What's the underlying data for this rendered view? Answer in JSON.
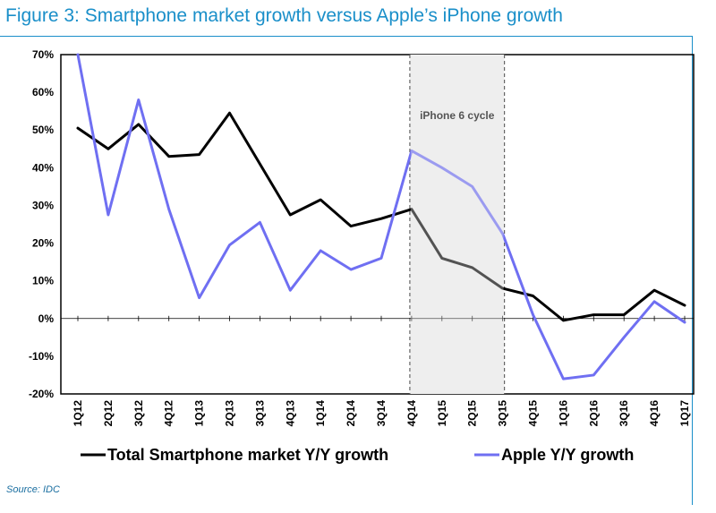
{
  "figure": {
    "title": "Figure 3: Smartphone market growth versus Apple’s iPhone growth",
    "source": "Source: IDC"
  },
  "chart_data": {
    "type": "line",
    "title": "Figure 3: Smartphone market growth versus Apple’s iPhone growth",
    "xlabel": "",
    "ylabel": "",
    "categories": [
      "1Q12",
      "2Q12",
      "3Q12",
      "4Q12",
      "1Q13",
      "2Q13",
      "3Q13",
      "4Q13",
      "1Q14",
      "2Q14",
      "3Q14",
      "4Q14",
      "1Q15",
      "2Q15",
      "3Q15",
      "4Q15",
      "1Q16",
      "2Q16",
      "3Q16",
      "4Q16",
      "1Q17"
    ],
    "ylim": [
      -20,
      70
    ],
    "ytick_values": [
      -20,
      -10,
      0,
      10,
      20,
      30,
      40,
      50,
      60,
      70
    ],
    "ytick_labels": [
      "-20%",
      "-10%",
      "0%",
      "10%",
      "20%",
      "30%",
      "40%",
      "50%",
      "60%",
      "70%"
    ],
    "series": [
      {
        "name": "Total Smartphone market Y/Y growth",
        "color": "#000000",
        "values": [
          50.5,
          45,
          51.5,
          43,
          43.5,
          54.5,
          41,
          27.5,
          31.5,
          24.5,
          26.5,
          29,
          16,
          13.5,
          8,
          6,
          -0.5,
          1,
          1,
          7.5,
          3.5
        ]
      },
      {
        "name": "Apple Y/Y growth",
        "color": "#6f6ff2",
        "values": [
          70,
          27.5,
          58,
          29,
          5.5,
          19.5,
          25.5,
          7.5,
          18,
          13,
          16,
          44.5,
          40,
          35,
          22.5,
          1,
          -16,
          -15,
          -5,
          4.5,
          -1
        ]
      }
    ],
    "shaded_region": {
      "label": "iPhone 6 cycle",
      "from_category": "4Q14",
      "to_category": "3Q15",
      "fill": "#efefef"
    },
    "legend_position": "bottom"
  }
}
